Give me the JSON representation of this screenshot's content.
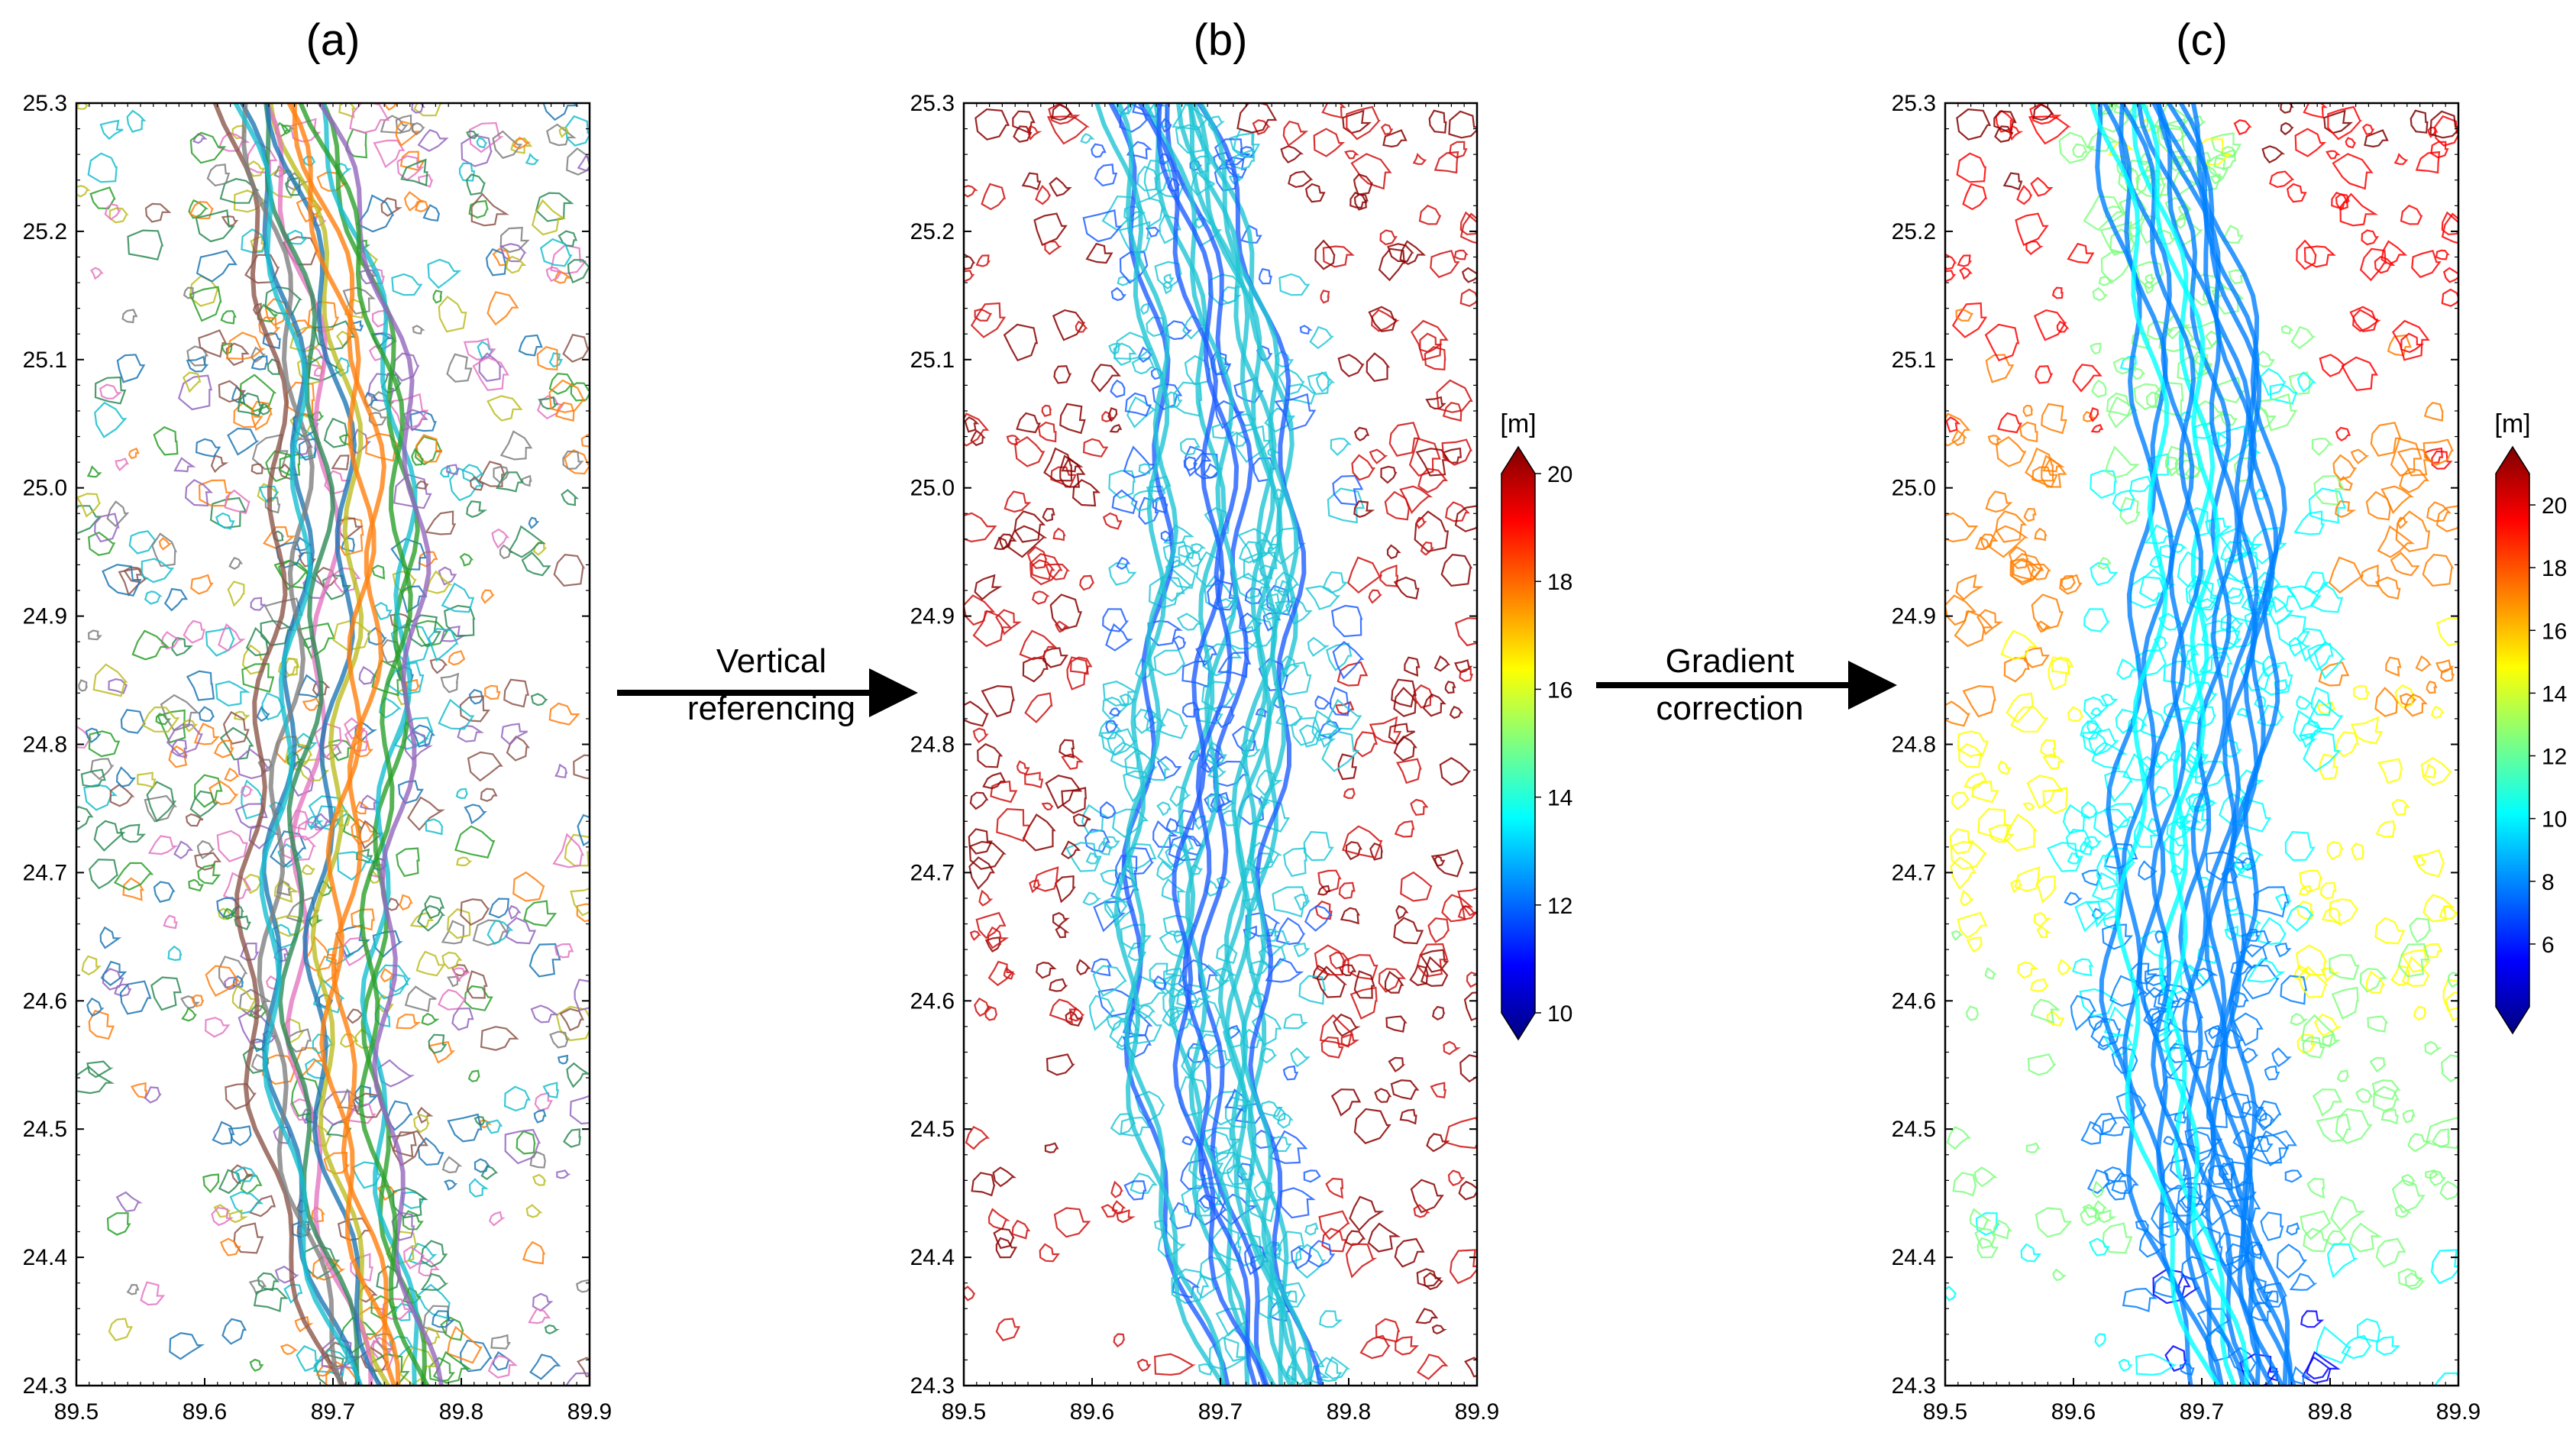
{
  "panels": [
    {
      "id": "a",
      "label": "(a)",
      "color_mode": "multicolor"
    },
    {
      "id": "b",
      "label": "(b)",
      "color_mode": "elevation_flat"
    },
    {
      "id": "c",
      "label": "(c)",
      "color_mode": "elevation_gradient"
    }
  ],
  "axes": {
    "x_ticks": [
      "89.5",
      "89.6",
      "89.7",
      "89.8",
      "89.9"
    ],
    "y_ticks": [
      "25.3",
      "25.2",
      "25.1",
      "25.0",
      "24.9",
      "24.8",
      "24.7",
      "24.6",
      "24.5",
      "24.4",
      "24.3"
    ],
    "xlim": [
      89.5,
      89.9
    ],
    "ylim": [
      24.3,
      25.3
    ]
  },
  "arrows": [
    {
      "id": "vertical",
      "line1": "Vertical",
      "line2": "referencing"
    },
    {
      "id": "gradient",
      "line1": "Gradient",
      "line2": "correction"
    }
  ],
  "colorbars": [
    {
      "panel": "b",
      "unit": "[m]",
      "min": 10,
      "max": 20,
      "ticks": [
        "20",
        "18",
        "16",
        "14",
        "12",
        "10"
      ]
    },
    {
      "panel": "c",
      "unit": "[m]",
      "min": 4,
      "max": 21,
      "ticks": [
        "20",
        "18",
        "16",
        "14",
        "12",
        "10",
        "8",
        "6"
      ]
    }
  ],
  "colors": {
    "jet": [
      "#00007f",
      "#0000ff",
      "#007fff",
      "#00ffff",
      "#7fff7f",
      "#ffff00",
      "#ff7f00",
      "#ff0000",
      "#7f0000"
    ],
    "multicolor": [
      "#1f77b4",
      "#2ca02c",
      "#17becf",
      "#ff7f0e",
      "#bcbd22",
      "#8c564b",
      "#9467bd",
      "#e377c2",
      "#2e8b57",
      "#7f7f7f"
    ]
  }
}
